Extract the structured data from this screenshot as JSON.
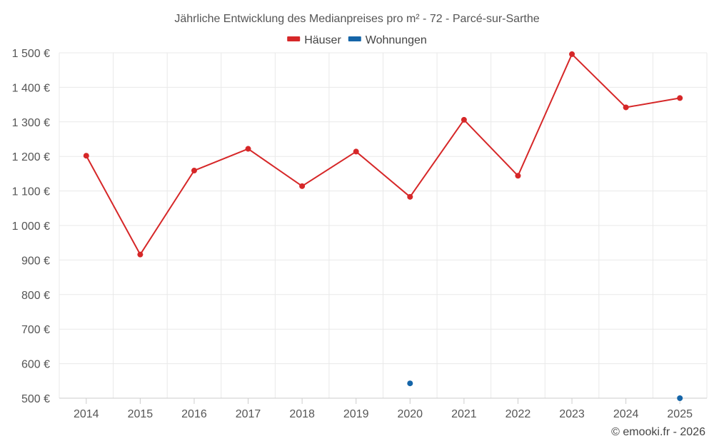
{
  "chart_data": {
    "type": "line",
    "title": "Jährliche Entwicklung des Medianpreises pro m² - 72 - Parcé-sur-Sarthe",
    "categories": [
      "2014",
      "2015",
      "2016",
      "2017",
      "2018",
      "2019",
      "2020",
      "2021",
      "2022",
      "2023",
      "2024",
      "2025"
    ],
    "y_ticks": [
      500,
      600,
      700,
      800,
      900,
      1000,
      1100,
      1200,
      1300,
      1400,
      1500
    ],
    "y_tick_labels": [
      "500 €",
      "600 €",
      "700 €",
      "800 €",
      "900 €",
      "1 000 €",
      "1 100 €",
      "1 200 €",
      "1 300 €",
      "1 400 €",
      "1 500 €"
    ],
    "ylim": [
      500,
      1500
    ],
    "grid": true,
    "legend_position": "top-center",
    "series": [
      {
        "name": "Häuser",
        "color": "#d62728",
        "line": true,
        "values": [
          1202,
          916,
          1159,
          1222,
          1114,
          1214,
          1083,
          1306,
          1144,
          1496,
          1342,
          1369
        ]
      },
      {
        "name": "Wohnungen",
        "color": "#1565a8",
        "line": false,
        "values": [
          null,
          null,
          null,
          null,
          null,
          null,
          543,
          null,
          null,
          null,
          null,
          500
        ]
      }
    ]
  },
  "credit": "© emooki.fr - 2026"
}
